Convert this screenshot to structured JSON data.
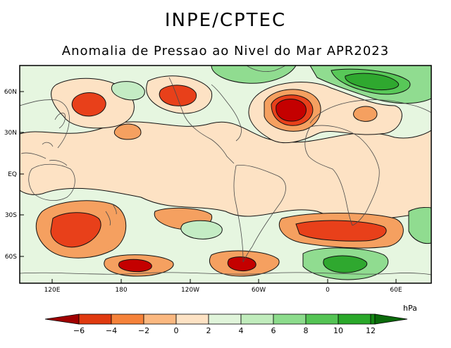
{
  "header": {
    "title": "INPE/CPTEC",
    "subtitle": "Anomalia de Pressao ao Nivel do Mar APR2023"
  },
  "map": {
    "lat_labels": [
      "60N",
      "30N",
      "EQ",
      "30S",
      "60S"
    ],
    "lon_labels": [
      "120E",
      "180",
      "120W",
      "60W",
      "0",
      "60E"
    ],
    "colors": {
      "n6": "#c40000",
      "n4": "#e8401a",
      "n2": "#f5a060",
      "n0": "#fde2c4",
      "p0": "#e6f6e0",
      "p2": "#c4ecc4",
      "p4": "#90dc90",
      "p6": "#58c858",
      "p8": "#2fa82f",
      "p10": "#148c14",
      "coast": "#4a4a4a"
    }
  },
  "legend": {
    "unit": "hPa",
    "ticks": [
      "−6",
      "−4",
      "−2",
      "0",
      "2",
      "4",
      "6",
      "8",
      "10",
      "12"
    ],
    "colors": [
      "#a00000",
      "#e03a10",
      "#f5823a",
      "#fbb880",
      "#fde2c4",
      "#e0f4da",
      "#c0ecbc",
      "#8cdc8c",
      "#54c454",
      "#2aa82a",
      "#138813",
      "#0a6a0a"
    ]
  }
}
